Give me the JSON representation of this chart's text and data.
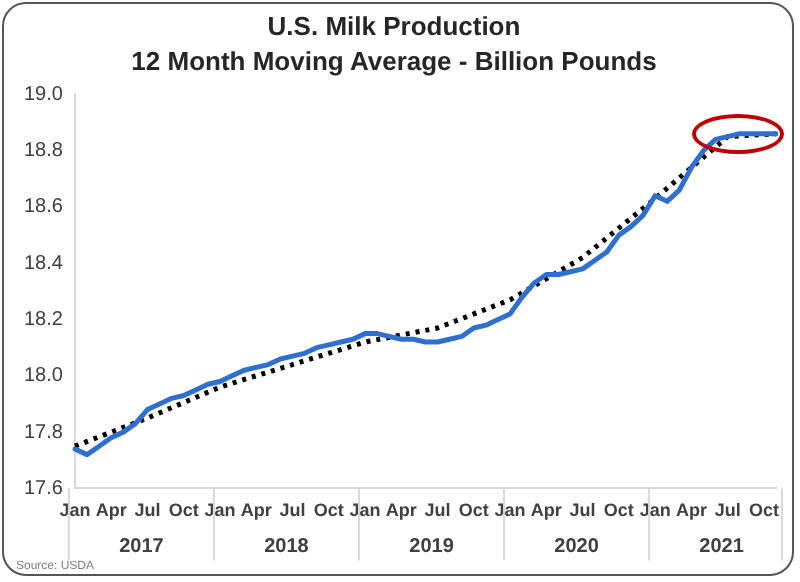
{
  "chart_data": {
    "type": "line",
    "title": "U.S. Milk Production",
    "subtitle": "12 Month Moving Average - Billion Pounds",
    "categories": [
      "Jan",
      null,
      null,
      "Apr",
      null,
      null,
      "Jul",
      null,
      null,
      "Oct",
      null,
      null,
      "Jan",
      null,
      null,
      "Apr",
      null,
      null,
      "Jul",
      null,
      null,
      "Oct",
      null,
      null,
      "Jan",
      null,
      null,
      "Apr",
      null,
      null,
      "Jul",
      null,
      null,
      "Oct",
      null,
      null,
      "Jan",
      null,
      null,
      "Apr",
      null,
      null,
      "Jul",
      null,
      null,
      "Oct",
      null,
      null,
      "Jan",
      null,
      null,
      "Apr",
      null,
      null,
      "Jul",
      null,
      null,
      "Oct",
      null
    ],
    "series": [
      {
        "type": "line",
        "color": "#2e6fd0",
        "line_style": "solid",
        "values": [
          17.74,
          17.72,
          17.75,
          17.78,
          17.8,
          17.83,
          17.88,
          17.9,
          17.92,
          17.93,
          17.95,
          17.97,
          17.98,
          18.0,
          18.02,
          18.03,
          18.04,
          18.06,
          18.07,
          18.08,
          18.1,
          18.11,
          18.12,
          18.13,
          18.15,
          18.15,
          18.14,
          18.13,
          18.13,
          18.12,
          18.12,
          18.13,
          18.14,
          18.17,
          18.18,
          18.2,
          18.22,
          18.28,
          18.33,
          18.36,
          18.36,
          18.37,
          18.38,
          18.41,
          18.44,
          18.5,
          18.53,
          18.57,
          18.64,
          18.62,
          18.66,
          18.74,
          18.8,
          18.84,
          18.85,
          18.86,
          18.86,
          18.86,
          18.86
        ]
      },
      {
        "type": "line",
        "color": "#000000",
        "line_style": "dotted",
        "values": [
          17.75,
          null,
          null,
          null,
          null,
          null,
          17.85,
          null,
          null,
          null,
          null,
          null,
          17.96,
          null,
          null,
          null,
          null,
          null,
          18.04,
          null,
          null,
          null,
          null,
          null,
          18.12,
          null,
          null,
          null,
          null,
          null,
          18.17,
          null,
          null,
          null,
          null,
          null,
          18.27,
          null,
          null,
          null,
          null,
          null,
          18.42,
          null,
          null,
          null,
          null,
          null,
          18.63,
          null,
          null,
          null,
          null,
          null,
          18.85,
          null,
          null,
          null,
          18.86
        ]
      }
    ],
    "ylim": [
      17.6,
      19.0
    ],
    "yticks": [
      17.6,
      17.8,
      {
        "value": 18,
        "label": "18.0"
      },
      18.2,
      18.4,
      18.6,
      18.8,
      {
        "value": 19,
        "label": "19.0"
      }
    ],
    "grid": false,
    "legend": false,
    "marker": "none",
    "annotations": [
      "2017",
      "2018",
      "2019",
      "2020",
      "2021",
      "Source: USDA"
    ]
  }
}
